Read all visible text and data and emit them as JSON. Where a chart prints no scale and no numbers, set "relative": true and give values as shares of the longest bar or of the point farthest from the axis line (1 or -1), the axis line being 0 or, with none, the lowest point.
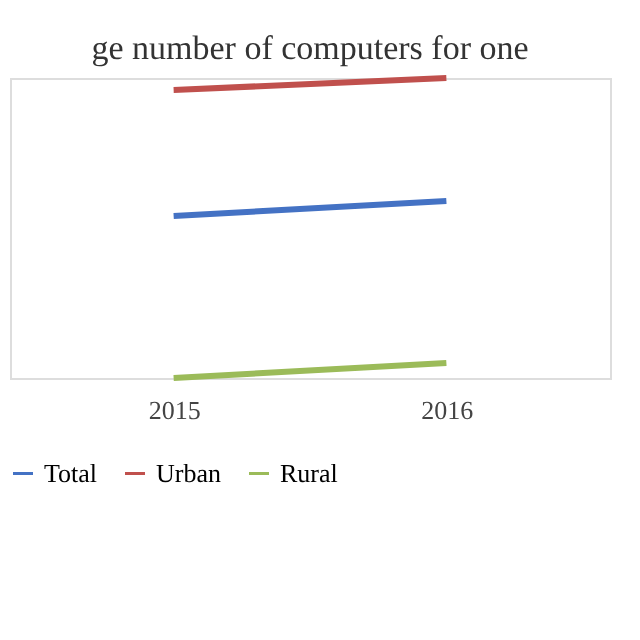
{
  "chart_data": {
    "type": "line",
    "title": "ge number of computers for one",
    "relative": true,
    "categories": [
      "2015",
      "2016"
    ],
    "series": [
      {
        "name": "Total",
        "color": "#4472c4",
        "values": [
          0.54,
          0.59
        ]
      },
      {
        "name": "Urban",
        "color": "#c0504d",
        "values": [
          0.96,
          1
        ]
      },
      {
        "name": "Rural",
        "color": "#9bbb59",
        "values": [
          0,
          0.05
        ]
      }
    ],
    "legend": "bottom",
    "grid": false,
    "marker": "none",
    "line_style": "solid"
  }
}
